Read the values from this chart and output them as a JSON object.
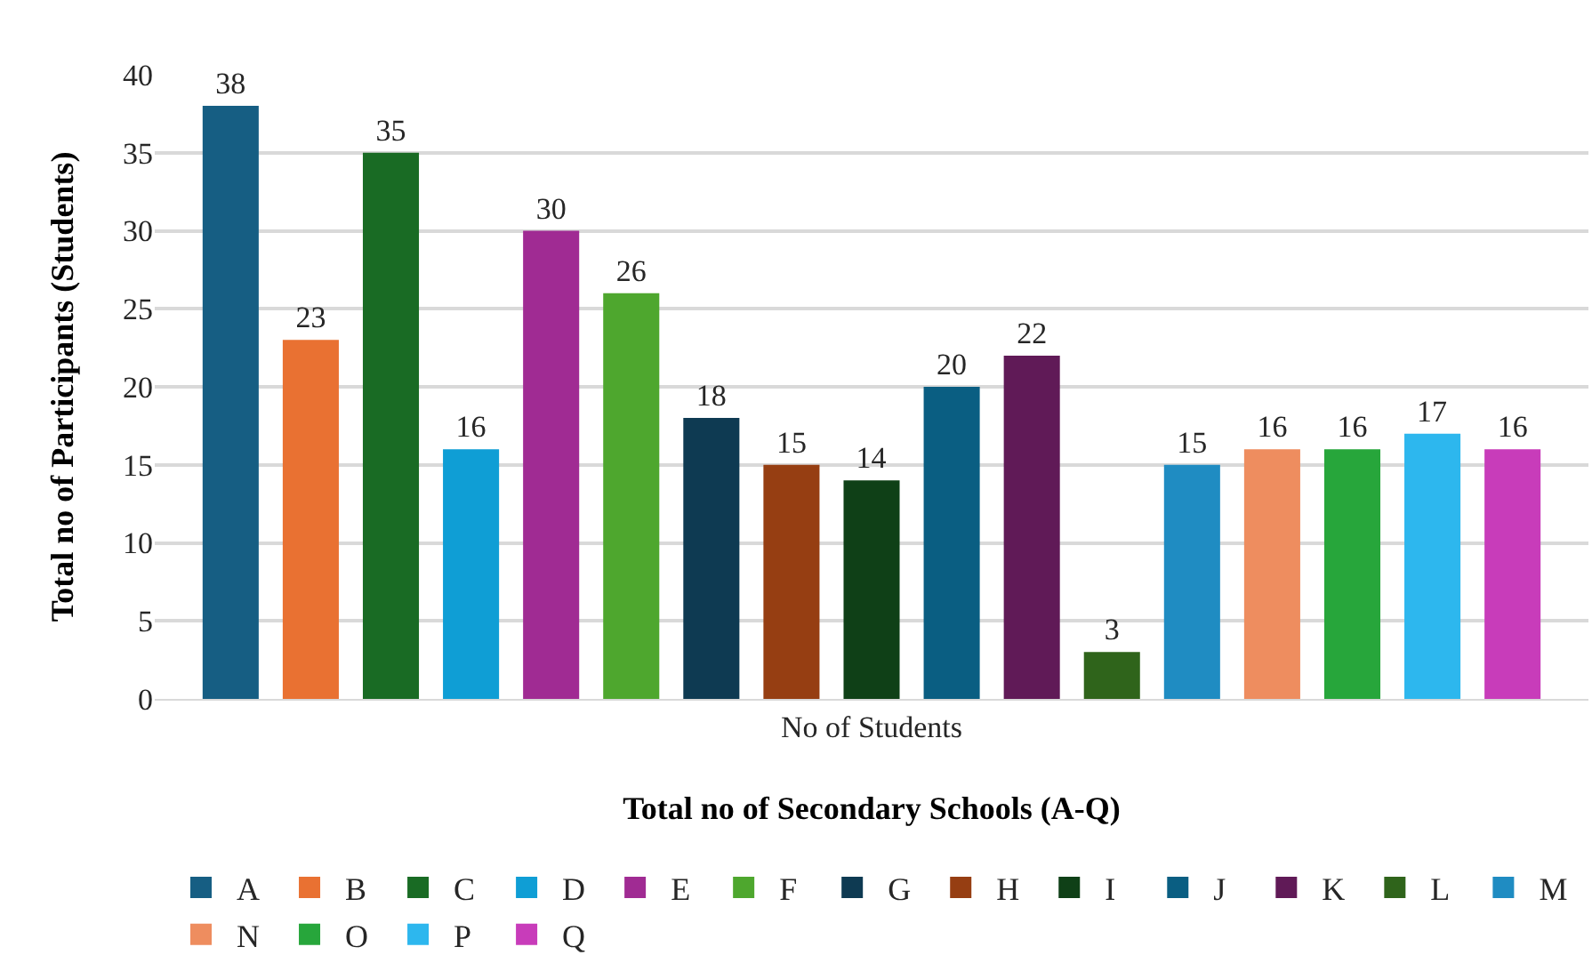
{
  "chart_data": {
    "type": "bar",
    "xlabel": "Total no of Secondary Schools (A-Q)",
    "ylabel": "Total no of Participants (Students)",
    "categories": [
      "No of Students"
    ],
    "series": [
      {
        "name": "A",
        "color": "#165e83",
        "values": [
          38
        ]
      },
      {
        "name": "B",
        "color": "#e97132",
        "values": [
          23
        ]
      },
      {
        "name": "C",
        "color": "#196b24",
        "values": [
          35
        ]
      },
      {
        "name": "D",
        "color": "#0f9ed5",
        "values": [
          16
        ]
      },
      {
        "name": "E",
        "color": "#a02b93",
        "values": [
          30
        ]
      },
      {
        "name": "F",
        "color": "#4ea72e",
        "values": [
          26
        ]
      },
      {
        "name": "G",
        "color": "#0e3a52",
        "values": [
          18
        ]
      },
      {
        "name": "H",
        "color": "#963e12",
        "values": [
          15
        ]
      },
      {
        "name": "I",
        "color": "#0f4017",
        "values": [
          14
        ]
      },
      {
        "name": "J",
        "color": "#0a5e82",
        "values": [
          20
        ]
      },
      {
        "name": "K",
        "color": "#601a57",
        "values": [
          22
        ]
      },
      {
        "name": "L",
        "color": "#2f641b",
        "values": [
          3
        ]
      },
      {
        "name": "M",
        "color": "#1f8cc2",
        "values": [
          15
        ]
      },
      {
        "name": "N",
        "color": "#ee8d5f",
        "values": [
          16
        ]
      },
      {
        "name": "O",
        "color": "#27a63b",
        "values": [
          16
        ]
      },
      {
        "name": "P",
        "color": "#2db7ee",
        "values": [
          17
        ]
      },
      {
        "name": "Q",
        "color": "#c83cba",
        "values": [
          16
        ]
      }
    ],
    "ylim": [
      0,
      40
    ],
    "yticks": [
      0,
      5,
      10,
      15,
      20,
      25,
      30,
      35,
      40
    ],
    "grid": "y",
    "legend": "bottom",
    "data_labels": true
  }
}
